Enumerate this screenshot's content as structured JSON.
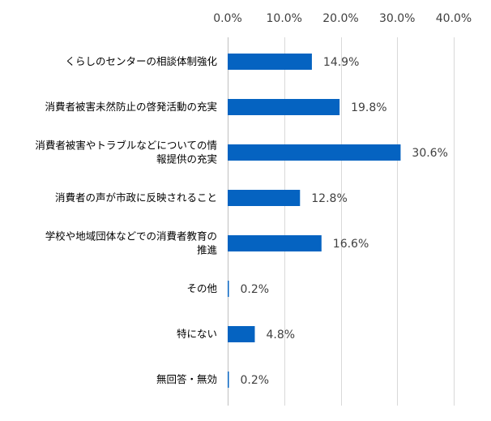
{
  "chart_data": {
    "type": "bar",
    "orientation": "horizontal",
    "title": "",
    "xlabel": "",
    "ylabel": "",
    "xlim": [
      0,
      40
    ],
    "tick_values": [
      0,
      10,
      20,
      30,
      40
    ],
    "tick_labels": [
      "0.0%",
      "10.0%",
      "20.0%",
      "30.0%",
      "40.0%"
    ],
    "axis_position": "top",
    "grid": true,
    "legend": "none",
    "categories": [
      [
        "くらしのセンターの相談体制強化"
      ],
      [
        "消費者被害未然防止の啓発活動の充実"
      ],
      [
        "消費者被害やトラブルなどについての情",
        "報提供の充実"
      ],
      [
        "消費者の声が市政に反映されること"
      ],
      [
        "学校や地域団体などでの消費者教育の",
        "推進"
      ],
      [
        "その他"
      ],
      [
        "特にない"
      ],
      [
        "無回答・無効"
      ]
    ],
    "values": [
      14.9,
      19.8,
      30.6,
      12.8,
      16.6,
      0.2,
      4.8,
      0.2
    ],
    "value_labels": [
      "14.9%",
      "19.8%",
      "30.6%",
      "12.8%",
      "16.6%",
      "0.2%",
      "4.8%",
      "0.2%"
    ],
    "bar_color": "#0563C1"
  }
}
